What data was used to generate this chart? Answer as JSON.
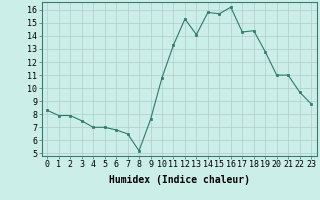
{
  "x": [
    0,
    1,
    2,
    3,
    4,
    5,
    6,
    7,
    8,
    9,
    10,
    11,
    12,
    13,
    14,
    15,
    16,
    17,
    18,
    19,
    20,
    21,
    22,
    23
  ],
  "y": [
    8.3,
    7.9,
    7.9,
    7.5,
    7.0,
    7.0,
    6.8,
    6.5,
    5.2,
    7.6,
    10.8,
    13.3,
    15.3,
    14.1,
    15.8,
    15.7,
    16.2,
    14.3,
    14.4,
    12.8,
    11.0,
    11.0,
    9.7,
    8.8
  ],
  "line_color": "#2d7a6e",
  "marker_color": "#2d7a6e",
  "bg_color": "#cceee8",
  "grid_color": "#b0cccc",
  "xlabel": "Humidex (Indice chaleur)",
  "xlabel_fontsize": 7,
  "tick_fontsize": 6,
  "ylim": [
    4.8,
    16.6
  ],
  "yticks": [
    5,
    6,
    7,
    8,
    9,
    10,
    11,
    12,
    13,
    14,
    15,
    16
  ],
  "xticks": [
    0,
    1,
    2,
    3,
    4,
    5,
    6,
    7,
    8,
    9,
    10,
    11,
    12,
    13,
    14,
    15,
    16,
    17,
    18,
    19,
    20,
    21,
    22,
    23
  ],
  "xlim": [
    -0.5,
    23.5
  ]
}
